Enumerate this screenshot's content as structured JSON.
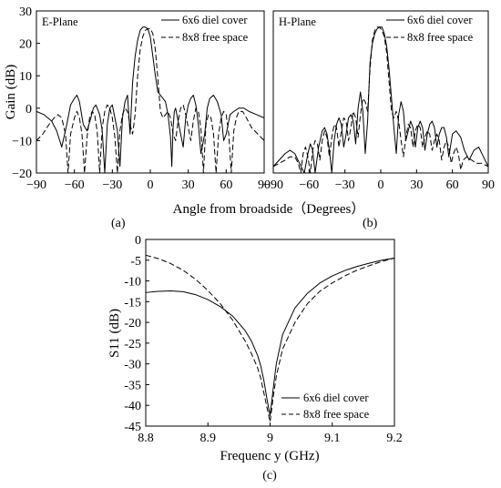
{
  "chart_data": [
    {
      "type": "line",
      "panel_label": "(a)",
      "panel_title": "E-Plane",
      "ylabel": "Gain (dB)",
      "xlim": [
        -90,
        90
      ],
      "ylim": [
        -20,
        30
      ],
      "xticks": [
        -90,
        -60,
        -30,
        0,
        30,
        60,
        90
      ],
      "yticks": [
        30,
        20,
        10,
        0,
        -10,
        -20
      ],
      "x_tick_labels": [
        "−90",
        "−60",
        "−30",
        "0",
        "30",
        "60",
        "90"
      ],
      "y_tick_labels": [
        "30",
        "20",
        "10",
        "0",
        "−10",
        "−20"
      ],
      "legend_position": "top-right",
      "series": [
        {
          "name": "6x6 diel cover",
          "style": "solid",
          "x": [
            -90,
            -84,
            -78,
            -74,
            -70,
            -66,
            -63,
            -60,
            -58,
            -56,
            -53,
            -50,
            -47,
            -45,
            -43,
            -40,
            -38,
            -36,
            -34,
            -32,
            -30,
            -28,
            -26,
            -24,
            -22,
            -20,
            -19,
            -18,
            -17,
            -16,
            -14,
            -12,
            -10,
            -8,
            -6,
            -4,
            -2,
            0,
            2,
            4,
            6,
            8,
            10,
            12,
            14,
            16,
            17,
            18,
            19,
            20,
            22,
            24,
            26,
            28,
            30,
            32,
            34,
            36,
            38,
            40,
            43,
            45,
            47,
            50,
            53,
            56,
            58,
            60,
            63,
            66,
            70,
            74,
            78,
            84,
            90
          ],
          "y": [
            -1,
            -2,
            -4,
            -7,
            -12,
            -5,
            1,
            3,
            4,
            2,
            -5,
            -7,
            -3,
            0,
            1,
            -2,
            -7,
            -20,
            -5,
            0,
            1,
            -3,
            -7,
            -18,
            -3,
            2,
            3,
            4,
            -2,
            -8,
            8,
            16,
            21,
            24,
            25,
            25,
            24.5,
            22,
            16,
            10,
            5,
            4,
            3,
            2,
            -2,
            -9,
            -18,
            -6,
            -1,
            0,
            -4,
            -8,
            -12,
            -3,
            1,
            3,
            4,
            1,
            -5,
            -14,
            -8,
            0,
            3,
            4,
            2,
            -2,
            -10,
            -8,
            -2,
            -1,
            0,
            0,
            -1,
            -2,
            -3
          ]
        },
        {
          "name": "8x8 free space",
          "style": "dashed",
          "x": [
            -90,
            -85,
            -80,
            -76,
            -73,
            -70,
            -67,
            -65,
            -63,
            -60,
            -58,
            -56,
            -54,
            -52,
            -50,
            -48,
            -46,
            -44,
            -42,
            -40,
            -38,
            -36,
            -34,
            -32,
            -30,
            -28,
            -26,
            -24,
            -22,
            -20,
            -18,
            -16,
            -14,
            -12,
            -10,
            -8,
            -6,
            -4,
            -2,
            0,
            2,
            4,
            6,
            8,
            10,
            12,
            14,
            16,
            18,
            20,
            22,
            24,
            26,
            28,
            30,
            32,
            34,
            36,
            38,
            40,
            42,
            44,
            46,
            48,
            50,
            52,
            54,
            56,
            58,
            60,
            62,
            64,
            66,
            68,
            70,
            73,
            76,
            80,
            85,
            90
          ],
          "y": [
            -10,
            -8,
            -5,
            -3,
            -2,
            -3,
            -8,
            -20,
            -8,
            -3,
            -1,
            -3,
            -8,
            -20,
            -9,
            -3,
            -1,
            -2,
            -7,
            -20,
            -6,
            -1,
            1,
            0,
            -3,
            -9,
            -20,
            -7,
            -2,
            0,
            -1,
            -5,
            -8,
            -2,
            10,
            18,
            22,
            24,
            24.5,
            24.5,
            23,
            18,
            9,
            -1,
            -3,
            -2,
            -1,
            -3,
            -8,
            -10,
            -4,
            0,
            1,
            -2,
            -6,
            -10,
            -4,
            0,
            -1,
            -6,
            -20,
            -5,
            -2,
            -3,
            -8,
            -20,
            -8,
            -3,
            -1,
            -2,
            -8,
            -20,
            -7,
            -3,
            -1,
            -1,
            -3,
            -6,
            -8,
            -10
          ]
        }
      ]
    },
    {
      "type": "line",
      "panel_label": "(b)",
      "panel_title": "H-Plane",
      "xlim": [
        -90,
        90
      ],
      "ylim": [
        -20,
        30
      ],
      "xticks": [
        -90,
        -60,
        -30,
        0,
        30,
        60,
        90
      ],
      "x_tick_labels": [
        "−90",
        "−60",
        "−30",
        "0",
        "30",
        "60",
        "90"
      ],
      "legend_position": "top-right",
      "series": [
        {
          "name": "6x6 diel cover",
          "style": "solid",
          "x": [
            -90,
            -85,
            -80,
            -76,
            -72,
            -68,
            -64,
            -61,
            -59,
            -57,
            -55,
            -52,
            -49,
            -47,
            -45,
            -43,
            -41,
            -39,
            -37,
            -35,
            -33,
            -31,
            -29,
            -27,
            -25,
            -23,
            -21,
            -19,
            -17,
            -15,
            -13,
            -11,
            -9,
            -7,
            -5,
            -3,
            -1,
            1,
            3,
            5,
            7,
            9,
            11,
            13,
            15,
            17,
            19,
            21,
            23,
            25,
            27,
            29,
            31,
            33,
            35,
            37,
            39,
            41,
            43,
            45,
            47,
            49,
            51,
            53,
            55,
            57,
            60,
            63,
            67,
            70,
            74,
            78,
            82,
            86,
            90
          ],
          "y": [
            -18,
            -16,
            -14,
            -13,
            -14,
            -17,
            -20,
            -14,
            -11,
            -13,
            -20,
            -12,
            -7,
            -6,
            -8,
            -13,
            -20,
            -10,
            -5,
            -3,
            -5,
            -12,
            -8,
            -3,
            -2,
            -4,
            -11,
            0,
            5,
            -1,
            -14,
            -4,
            14,
            20,
            23,
            24.5,
            25,
            25,
            23,
            19,
            12,
            3,
            -6,
            -14,
            -2,
            2,
            -1,
            -10,
            -7,
            -4,
            -6,
            -12,
            -6,
            -4,
            -6,
            -13,
            -8,
            -5,
            -4,
            -6,
            -12,
            -8,
            -6,
            -6,
            -9,
            -15,
            -8,
            -7,
            -9,
            -13,
            -16,
            -13,
            -12,
            -15,
            -18
          ]
        },
        {
          "name": "8x8 free space",
          "style": "dashed",
          "x": [
            -90,
            -85,
            -80,
            -76,
            -72,
            -69,
            -67,
            -65,
            -63,
            -61,
            -59,
            -57,
            -55,
            -53,
            -51,
            -49,
            -47,
            -45,
            -43,
            -41,
            -39,
            -37,
            -35,
            -33,
            -31,
            -29,
            -27,
            -25,
            -23,
            -21,
            -19,
            -17,
            -15,
            -13,
            -11,
            -9,
            -7,
            -5,
            -3,
            -1,
            1,
            3,
            5,
            7,
            9,
            11,
            13,
            15,
            17,
            19,
            21,
            23,
            25,
            27,
            29,
            31,
            33,
            35,
            37,
            39,
            41,
            43,
            45,
            47,
            49,
            51,
            53,
            55,
            57,
            59,
            61,
            63,
            65,
            67,
            69,
            72,
            76,
            80,
            85,
            90
          ],
          "y": [
            -18,
            -17,
            -16,
            -15,
            -15,
            -17,
            -20,
            -14,
            -12,
            -15,
            -20,
            -13,
            -10,
            -11,
            -16,
            -10,
            -7,
            -9,
            -15,
            -9,
            -5,
            -6,
            -12,
            -7,
            -3,
            -4,
            -10,
            -6,
            -1,
            -3,
            -9,
            -2,
            3,
            2,
            -1,
            12,
            21,
            24,
            25,
            25,
            24,
            22,
            17,
            8,
            -1,
            -3,
            -1,
            -4,
            -10,
            -15,
            -9,
            -5,
            -6,
            -12,
            -7,
            -5,
            -6,
            -12,
            -9,
            -7,
            -8,
            -13,
            -10,
            -8,
            -10,
            -16,
            -12,
            -10,
            -12,
            -17,
            -14,
            -12,
            -14,
            -19,
            -16,
            -15,
            -16,
            -17,
            -17,
            -18
          ]
        }
      ]
    },
    {
      "type": "line",
      "panel_label": "(c)",
      "xlabel": "Frequenc y (GHz)",
      "ylabel": "S11 (dB)",
      "xlim": [
        8.8,
        9.2
      ],
      "ylim": [
        -45,
        0
      ],
      "xticks": [
        8.8,
        8.9,
        9.0,
        9.1,
        9.2
      ],
      "yticks": [
        0,
        -5,
        -10,
        -15,
        -20,
        -25,
        -30,
        -35,
        -40,
        -45
      ],
      "x_tick_labels": [
        "8.8",
        "8.9",
        "9",
        "9.1",
        "9.2"
      ],
      "y_tick_labels": [
        "0",
        "-5",
        "-10",
        "-15",
        "-20",
        "-25",
        "-30",
        "-35",
        "-40",
        "-45"
      ],
      "legend_position": "bottom-right",
      "series": [
        {
          "name": "6x6 diel cover",
          "style": "solid",
          "x": [
            8.8,
            8.82,
            8.84,
            8.86,
            8.88,
            8.9,
            8.92,
            8.94,
            8.96,
            8.97,
            8.98,
            8.985,
            8.99,
            8.995,
            9.0,
            9.005,
            9.01,
            9.02,
            9.04,
            9.06,
            9.08,
            9.1,
            9.12,
            9.14,
            9.16,
            9.18,
            9.2
          ],
          "y": [
            -12.8,
            -12.5,
            -12.4,
            -12.6,
            -13.3,
            -14.5,
            -16.2,
            -18.5,
            -22.0,
            -24.5,
            -28.0,
            -30.5,
            -34.0,
            -38.5,
            -42.5,
            -36.0,
            -30.0,
            -23.0,
            -16.5,
            -13.0,
            -10.5,
            -8.8,
            -7.5,
            -6.5,
            -5.7,
            -5.0,
            -4.5
          ]
        },
        {
          "name": "8x8 free space",
          "style": "dashed",
          "x": [
            8.8,
            8.82,
            8.84,
            8.86,
            8.88,
            8.9,
            8.92,
            8.94,
            8.96,
            8.97,
            8.98,
            8.985,
            8.99,
            8.995,
            9.0,
            9.005,
            9.01,
            9.02,
            9.04,
            9.06,
            9.08,
            9.1,
            9.12,
            9.14,
            9.16,
            9.18,
            9.2
          ],
          "y": [
            -3.8,
            -4.6,
            -5.8,
            -7.4,
            -9.6,
            -12.3,
            -15.5,
            -19.5,
            -24.5,
            -27.5,
            -31.0,
            -33.5,
            -37.0,
            -40.5,
            -44.0,
            -38.0,
            -33.0,
            -26.5,
            -20.0,
            -15.5,
            -12.5,
            -10.5,
            -8.8,
            -7.4,
            -6.3,
            -5.3,
            -4.5
          ]
        }
      ]
    }
  ],
  "shared_xlabel": "Angle from broadside（Degrees）"
}
